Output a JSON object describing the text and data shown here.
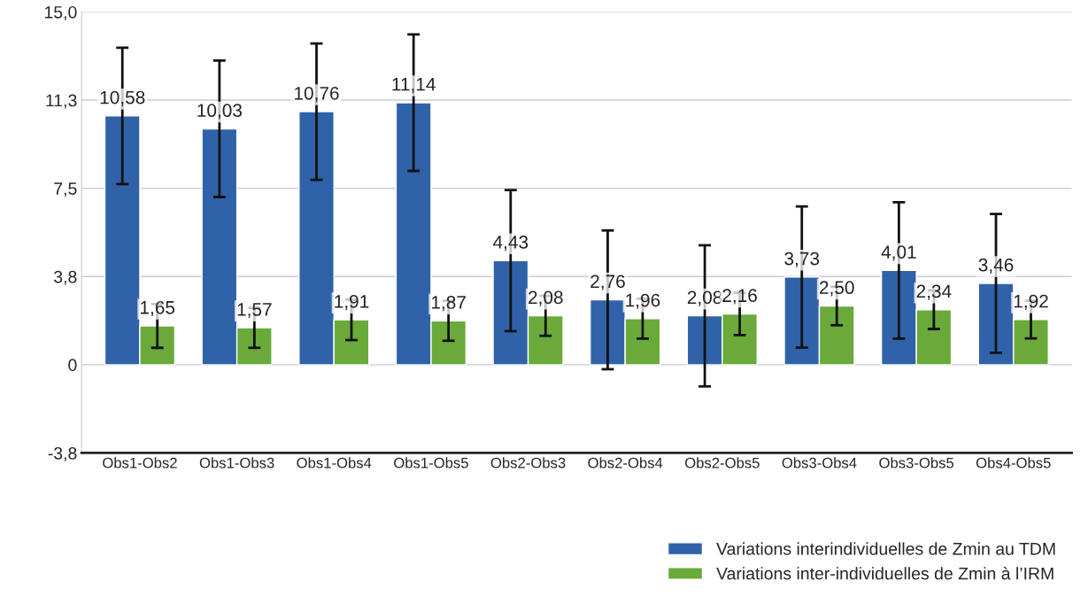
{
  "chart_data": {
    "type": "bar",
    "categories": [
      "Obs1-Obs2",
      "Obs1-Obs3",
      "Obs1-Obs4",
      "Obs1-Obs5",
      "Obs2-Obs3",
      "Obs2-Obs4",
      "Obs2-Obs5",
      "Obs3-Obs4",
      "Obs3-Obs5",
      "Obs4-Obs5"
    ],
    "series": [
      {
        "name": "Variations interindividuelles de Zmin au TDM",
        "color": "#2f62a8",
        "values": [
          10.58,
          10.03,
          10.76,
          11.14,
          4.43,
          2.76,
          2.08,
          3.73,
          4.01,
          3.46
        ],
        "errors": [
          2.9,
          2.9,
          2.9,
          2.9,
          3.0,
          2.95,
          3.0,
          3.0,
          2.9,
          2.95
        ],
        "value_labels": [
          "10,58",
          "10,03",
          "10,76",
          "11,14",
          "4,43",
          "2,76",
          "2,08",
          "3,73",
          "4,01",
          "3,46"
        ]
      },
      {
        "name": "Variations inter-individuelles de Zmin à l’IRM",
        "color": "#6aaa3a",
        "values": [
          1.65,
          1.57,
          1.91,
          1.87,
          2.08,
          1.96,
          2.16,
          2.5,
          2.34,
          1.92
        ],
        "errors": [
          0.93,
          0.85,
          0.86,
          0.85,
          0.85,
          0.85,
          0.9,
          0.82,
          0.82,
          0.8
        ],
        "value_labels": [
          "1,65",
          "1,57",
          "1,91",
          "1,87",
          "2,08",
          "1,96",
          "2,16",
          "2,50",
          "2,34",
          "1,92"
        ]
      }
    ],
    "ylim": [
      -3.75,
      15
    ],
    "yticks": [
      {
        "value": -3.75,
        "label": "-3,8"
      },
      {
        "value": 0,
        "label": "0"
      },
      {
        "value": 3.75,
        "label": "3,8"
      },
      {
        "value": 7.5,
        "label": "7,5"
      },
      {
        "value": 11.25,
        "label": "11,3"
      },
      {
        "value": 15,
        "label": "15,0"
      }
    ],
    "grid": "y",
    "legend": "bottom right"
  }
}
